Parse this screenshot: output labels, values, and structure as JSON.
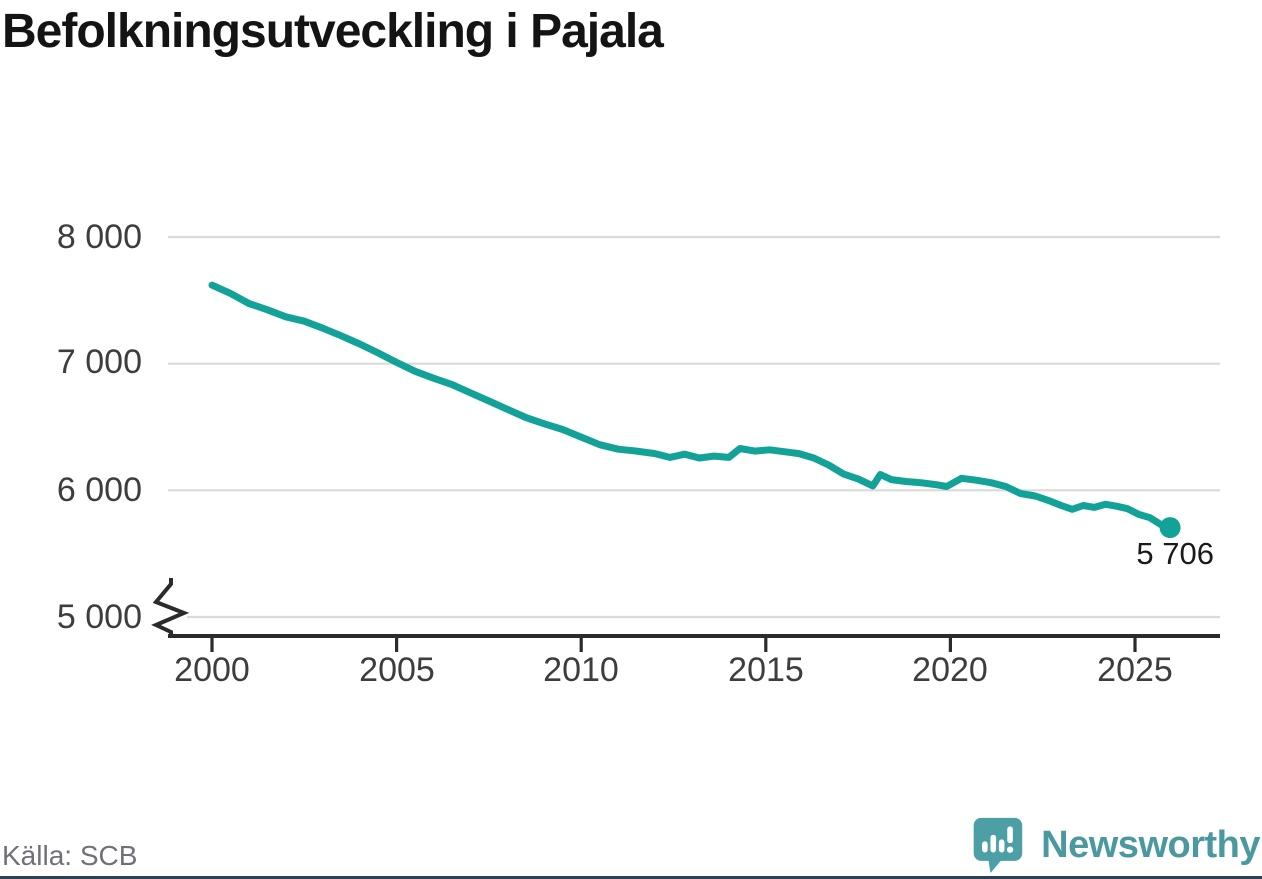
{
  "page": {
    "title": "Befolkningsutveckling i Pajala",
    "source": "Källa: SCB",
    "brand": {
      "name": "Newsworthy",
      "icon": "newsworthy-chart-bubble-icon",
      "text_color": "#4a99a1",
      "badge_color": "#4b9fa5"
    },
    "bottom_bar_color": "#2e4154"
  },
  "chart_data": {
    "type": "line",
    "title": "Befolkningsutveckling i Pajala",
    "source": "Källa: SCB",
    "x_ticks": [
      "2000",
      "2005",
      "2010",
      "2015",
      "2020",
      "2025"
    ],
    "x_tick_values": [
      2000,
      2005,
      2010,
      2015,
      2020,
      2025
    ],
    "y_ticks": [
      "8 000",
      "7 000",
      "6 000",
      "5 000"
    ],
    "y_tick_values": [
      8000,
      7000,
      6000,
      5000
    ],
    "xlim": [
      1998.8,
      2027.3
    ],
    "ylim": [
      5000,
      8000
    ],
    "y_axis_break": true,
    "grid": true,
    "legend": "none",
    "line_color": "#13a297",
    "grid_color": "#dadada",
    "axis_color": "#2b2b2b",
    "end_label": "5 706",
    "end_value": 5706,
    "series": [
      {
        "name": "Pajala",
        "points": [
          [
            2000.0,
            7620
          ],
          [
            2000.5,
            7555
          ],
          [
            2001.0,
            7475
          ],
          [
            2001.5,
            7425
          ],
          [
            2002.0,
            7370
          ],
          [
            2002.5,
            7335
          ],
          [
            2003.0,
            7280
          ],
          [
            2003.5,
            7220
          ],
          [
            2004.0,
            7155
          ],
          [
            2004.5,
            7085
          ],
          [
            2005.0,
            7010
          ],
          [
            2005.5,
            6940
          ],
          [
            2006.0,
            6885
          ],
          [
            2006.5,
            6835
          ],
          [
            2007.0,
            6770
          ],
          [
            2007.5,
            6705
          ],
          [
            2008.0,
            6640
          ],
          [
            2008.5,
            6575
          ],
          [
            2009.0,
            6525
          ],
          [
            2009.5,
            6480
          ],
          [
            2010.0,
            6420
          ],
          [
            2010.5,
            6360
          ],
          [
            2011.0,
            6325
          ],
          [
            2011.5,
            6310
          ],
          [
            2012.0,
            6290
          ],
          [
            2012.4,
            6260
          ],
          [
            2012.8,
            6285
          ],
          [
            2013.2,
            6255
          ],
          [
            2013.6,
            6270
          ],
          [
            2014.0,
            6260
          ],
          [
            2014.3,
            6330
          ],
          [
            2014.7,
            6310
          ],
          [
            2015.1,
            6320
          ],
          [
            2015.5,
            6305
          ],
          [
            2015.9,
            6290
          ],
          [
            2016.3,
            6255
          ],
          [
            2016.7,
            6200
          ],
          [
            2017.1,
            6130
          ],
          [
            2017.5,
            6090
          ],
          [
            2017.9,
            6035
          ],
          [
            2018.1,
            6125
          ],
          [
            2018.4,
            6085
          ],
          [
            2018.8,
            6070
          ],
          [
            2019.2,
            6060
          ],
          [
            2019.6,
            6045
          ],
          [
            2019.9,
            6030
          ],
          [
            2020.3,
            6095
          ],
          [
            2020.7,
            6080
          ],
          [
            2021.1,
            6060
          ],
          [
            2021.5,
            6030
          ],
          [
            2021.9,
            5975
          ],
          [
            2022.3,
            5955
          ],
          [
            2022.7,
            5915
          ],
          [
            2023.0,
            5880
          ],
          [
            2023.3,
            5850
          ],
          [
            2023.6,
            5880
          ],
          [
            2023.9,
            5865
          ],
          [
            2024.2,
            5890
          ],
          [
            2024.5,
            5875
          ],
          [
            2024.8,
            5855
          ],
          [
            2025.1,
            5810
          ],
          [
            2025.4,
            5785
          ],
          [
            2025.7,
            5730
          ],
          [
            2025.95,
            5706
          ]
        ]
      }
    ]
  }
}
